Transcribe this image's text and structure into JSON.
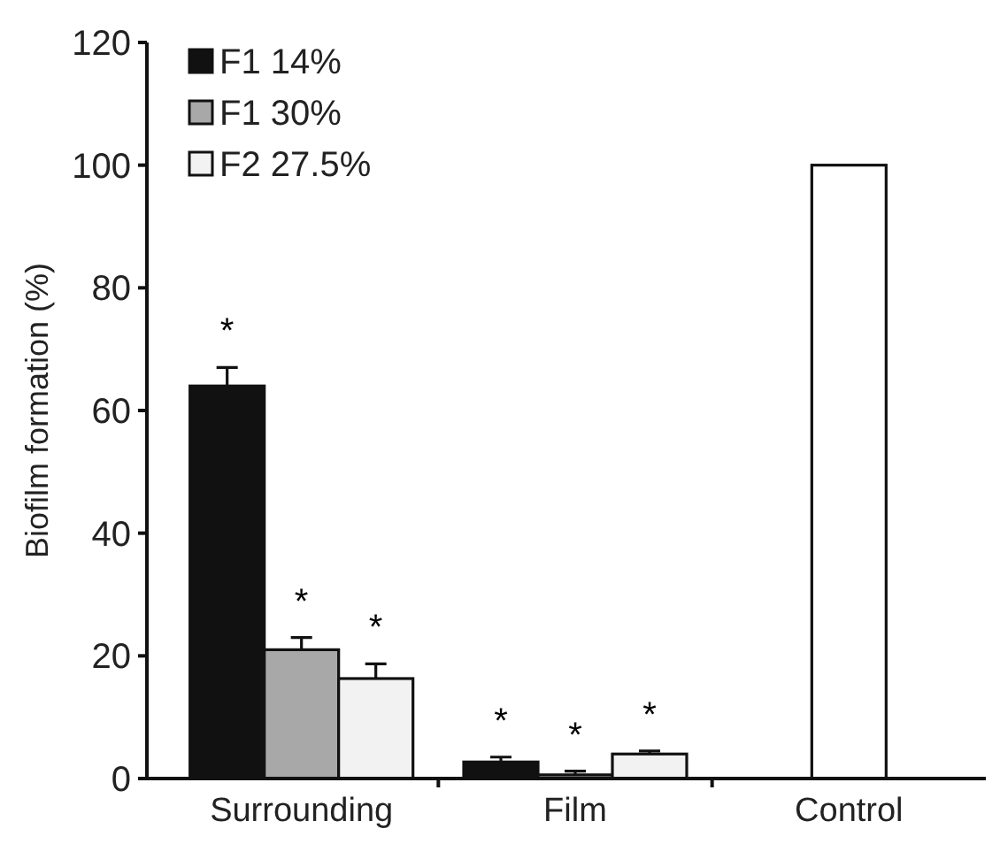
{
  "chart_data": {
    "type": "bar",
    "ylabel": "Biofilm formation (%)",
    "categories": [
      "Surrounding",
      "Film",
      "Control"
    ],
    "ylim": [
      0,
      120
    ],
    "yticks": [
      0,
      20,
      40,
      60,
      80,
      100,
      120
    ],
    "grid": false,
    "legend": "top left",
    "series": [
      {
        "name": "F1 14%",
        "color": "#111111",
        "values": [
          64,
          2.7,
          null
        ],
        "errors": [
          3,
          0.8,
          null
        ],
        "value_labels": [
          "*",
          "*",
          null
        ]
      },
      {
        "name": "F1 30%",
        "color": "#a8a8a8",
        "values": [
          21,
          0.6,
          null
        ],
        "errors": [
          2,
          0.6,
          null
        ],
        "value_labels": [
          "*",
          "*",
          null
        ]
      },
      {
        "name": "F2 27.5%",
        "color": "#f2f2f2",
        "values": [
          16.3,
          4,
          null
        ],
        "errors": [
          2.4,
          0.5,
          null
        ],
        "value_labels": [
          "*",
          "*",
          null
        ]
      },
      {
        "color": "#ffffff",
        "values": [
          null,
          null,
          100
        ]
      }
    ]
  }
}
